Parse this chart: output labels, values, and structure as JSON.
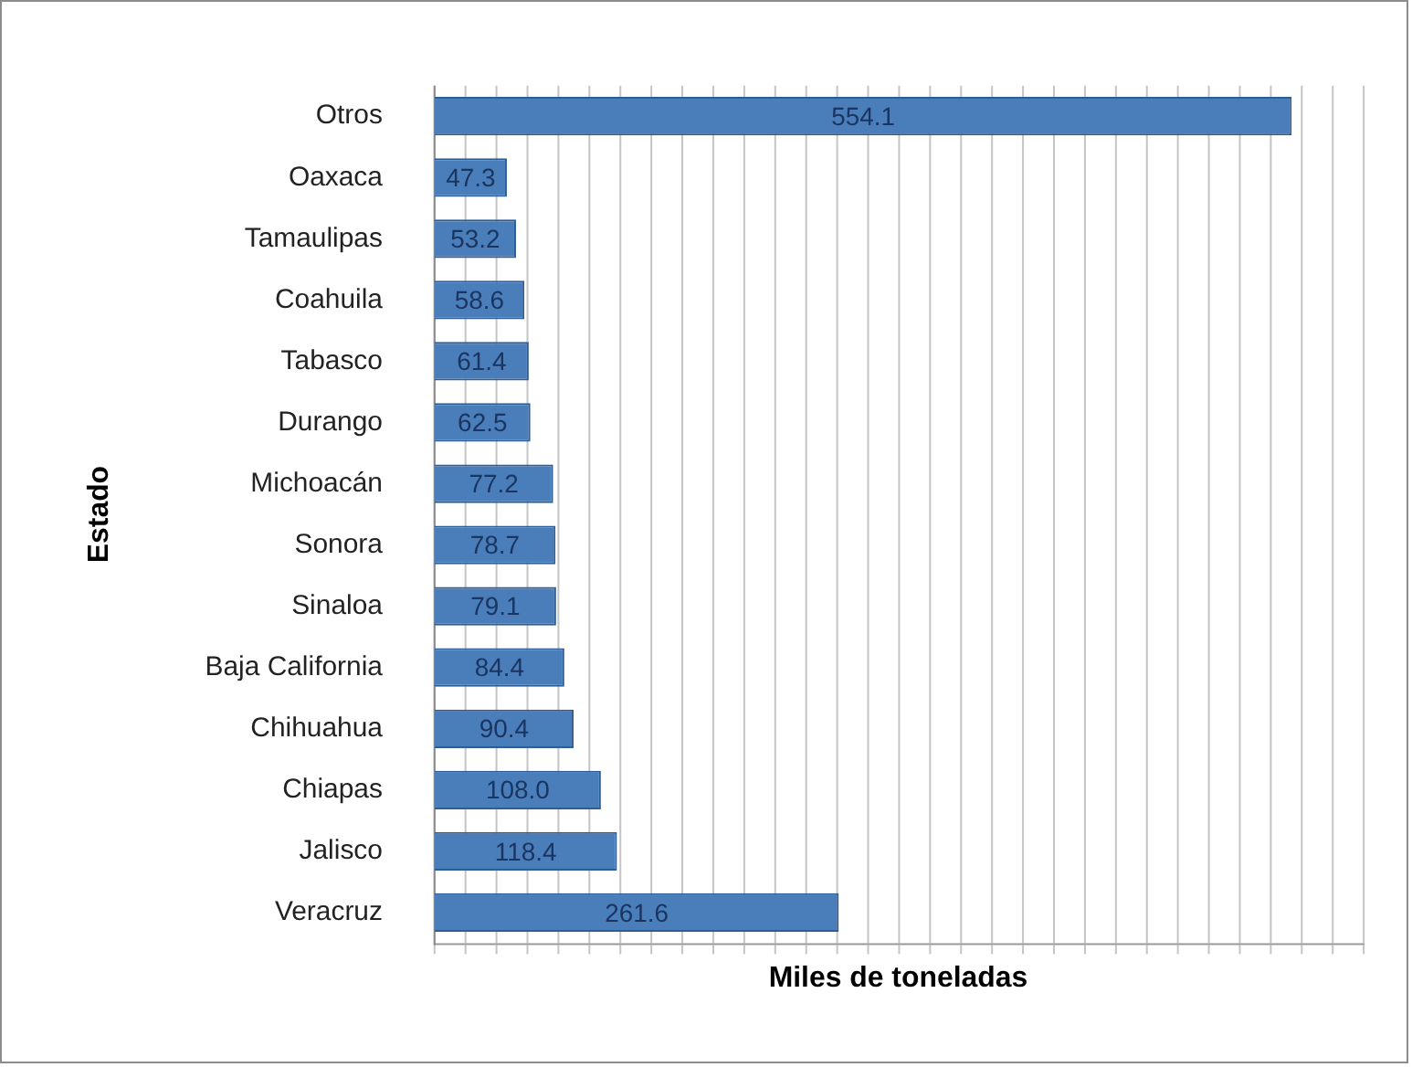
{
  "chart_data": {
    "type": "bar",
    "orientation": "horizontal",
    "xlabel": "Miles de toneladas",
    "ylabel": "Estado",
    "categories": [
      "Otros",
      "Oaxaca",
      "Tamaulipas",
      "Coahuila",
      "Tabasco",
      "Durango",
      "Michoacán",
      "Sonora",
      "Sinaloa",
      "Baja California",
      "Chihuahua",
      "Chiapas",
      "Jalisco",
      "Veracruz"
    ],
    "values": [
      554.1,
      47.3,
      53.2,
      58.6,
      61.4,
      62.5,
      77.2,
      78.7,
      79.1,
      84.4,
      90.4,
      108.0,
      118.4,
      261.6
    ],
    "value_labels": [
      "554.1",
      "47.3",
      "53.2",
      "58.6",
      "61.4",
      "62.5",
      "77.2",
      "78.7",
      "79.1",
      "84.4",
      "90.4",
      "108.0",
      "118.4",
      "261.6"
    ],
    "color": "#4a7ebb",
    "xlim": [
      0,
      600
    ],
    "xticks": [
      {
        "value": 0,
        "label": null
      },
      {
        "value": 20,
        "label": null
      },
      {
        "value": 40,
        "label": null
      },
      {
        "value": 60,
        "label": null
      },
      {
        "value": 80,
        "label": null
      },
      {
        "value": 100,
        "label": null
      },
      {
        "value": 120,
        "label": null
      },
      {
        "value": 140,
        "label": null
      },
      {
        "value": 160,
        "label": null
      },
      {
        "value": 180,
        "label": null
      },
      {
        "value": 200,
        "label": null
      },
      {
        "value": 220,
        "label": null
      },
      {
        "value": 240,
        "label": null
      },
      {
        "value": 260,
        "label": null
      },
      {
        "value": 280,
        "label": null
      },
      {
        "value": 300,
        "label": null
      },
      {
        "value": 320,
        "label": null
      },
      {
        "value": 340,
        "label": null
      },
      {
        "value": 360,
        "label": null
      },
      {
        "value": 380,
        "label": null
      },
      {
        "value": 400,
        "label": null
      },
      {
        "value": 420,
        "label": null
      },
      {
        "value": 440,
        "label": null
      },
      {
        "value": 460,
        "label": null
      },
      {
        "value": 480,
        "label": null
      },
      {
        "value": 500,
        "label": null
      },
      {
        "value": 520,
        "label": null
      },
      {
        "value": 540,
        "label": null
      },
      {
        "value": 560,
        "label": null
      },
      {
        "value": 580,
        "label": null
      },
      {
        "value": 600,
        "label": null
      }
    ],
    "grid": "x",
    "tick_labels": "y"
  }
}
